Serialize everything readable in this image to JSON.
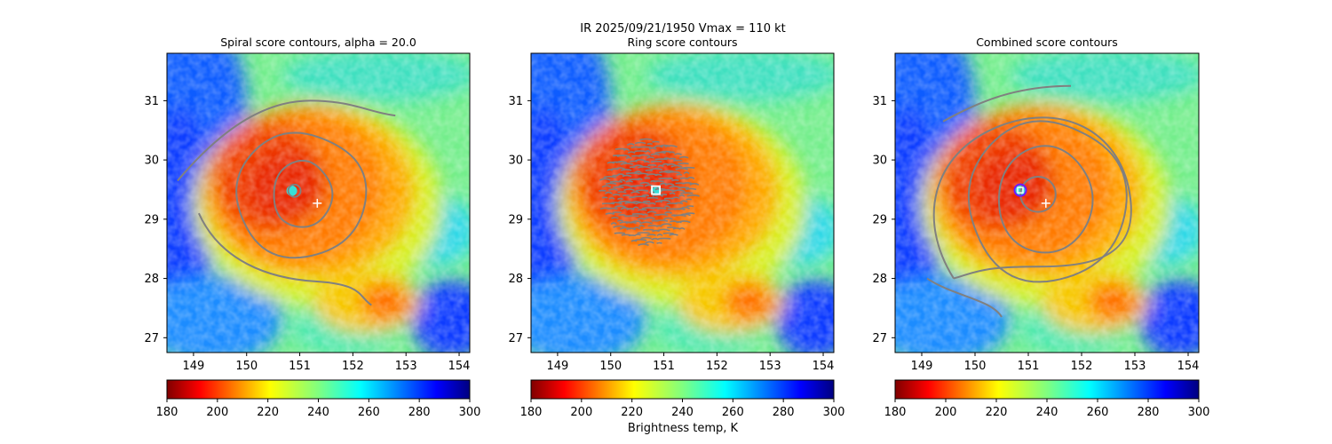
{
  "figure": {
    "suptitle_line1": "IR  2025/09/21/1950    Vmax = 110 kt",
    "colorbar_label": "Brightness temp, K"
  },
  "chart_data": [
    {
      "type": "heatmap",
      "title": "Spiral score contours, alpha = 20.0",
      "xlim": [
        148.5,
        154.2
      ],
      "ylim": [
        26.75,
        31.8
      ],
      "xticks": [
        149,
        150,
        151,
        152,
        153,
        154
      ],
      "yticks": [
        27,
        28,
        29,
        30,
        31
      ],
      "contour_color": "#808080",
      "eye_center": [
        150.85,
        29.48
      ],
      "reference_center_plus": [
        151.33,
        29.27
      ],
      "colorbar": {
        "cmap": "jet_r",
        "range": [
          180,
          300
        ],
        "ticks": [
          180,
          200,
          220,
          240,
          260,
          280,
          300
        ]
      }
    },
    {
      "type": "heatmap",
      "title": "Ring score contours",
      "xlim": [
        148.5,
        154.2
      ],
      "ylim": [
        26.75,
        31.8
      ],
      "xticks": [
        149,
        150,
        151,
        152,
        153,
        154
      ],
      "yticks": [
        27,
        28,
        29,
        30,
        31
      ],
      "contour_color": "#808080",
      "eye_center": [
        150.85,
        29.48
      ],
      "ring_center_square": [
        150.85,
        29.49
      ],
      "colorbar": {
        "cmap": "jet_r",
        "range": [
          180,
          300
        ],
        "ticks": [
          180,
          200,
          220,
          240,
          260,
          280,
          300
        ]
      }
    },
    {
      "type": "heatmap",
      "title": "Combined score contours",
      "xlim": [
        148.5,
        154.2
      ],
      "ylim": [
        26.75,
        31.8
      ],
      "xticks": [
        149,
        150,
        151,
        152,
        153,
        154
      ],
      "yticks": [
        27,
        28,
        29,
        30,
        31
      ],
      "contour_color": "#808080",
      "eye_center": [
        150.85,
        29.48
      ],
      "reference_center_plus": [
        151.33,
        29.27
      ],
      "combined_center_circle": [
        150.85,
        29.49
      ],
      "colorbar": {
        "cmap": "jet_r",
        "range": [
          180,
          300
        ],
        "ticks": [
          180,
          200,
          220,
          240,
          260,
          280,
          300
        ]
      }
    }
  ],
  "colors": {
    "eyewall": "#cc1100",
    "cdo": "#ff6a00",
    "outer": "#f7c800",
    "bands": "#8ff07a",
    "clear": "#1e74ff",
    "cold_clear": "#0000c8",
    "circle_marker": "#6a1bff"
  }
}
